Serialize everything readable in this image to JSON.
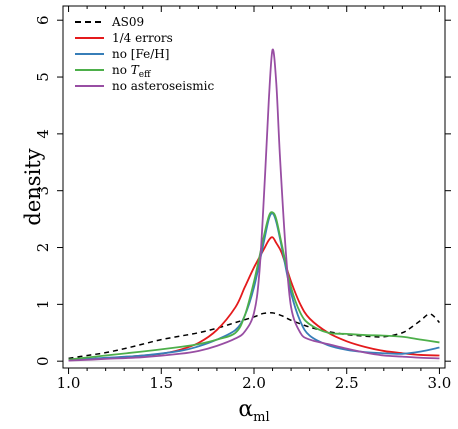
{
  "chart_data": {
    "type": "line",
    "xlabel": "α",
    "xlabel_sub": "ml",
    "ylabel": "density",
    "xlim": [
      0.97,
      3.03
    ],
    "ylim": [
      -0.12,
      6.25
    ],
    "x_ticks": [
      1.0,
      1.5,
      2.0,
      2.5,
      3.0
    ],
    "x_tick_labels": [
      "1.0",
      "1.5",
      "2.0",
      "2.5",
      "3.0"
    ],
    "y_ticks": [
      0,
      1,
      2,
      3,
      4,
      5,
      6
    ],
    "y_tick_labels": [
      "0",
      "1",
      "2",
      "3",
      "4",
      "5",
      "6"
    ],
    "grid": false,
    "legend_position": "top-left",
    "legend": [
      {
        "name": "AS09",
        "color": "#000000",
        "dash": true
      },
      {
        "name": "1/4 errors",
        "color": "#e41a1c",
        "dash": false
      },
      {
        "name": "no [Fe/H]",
        "color": "#377eb8",
        "dash": false
      },
      {
        "name": "no ",
        "name_italic": "T",
        "name_sub": "eff",
        "color": "#4daf4a",
        "dash": false
      },
      {
        "name": "no asteroseismic",
        "color": "#984ea3",
        "dash": false
      }
    ],
    "series": [
      {
        "name": "AS09",
        "color": "#000000",
        "dash": true,
        "width": 1.5,
        "x": [
          1.0,
          1.1,
          1.2,
          1.3,
          1.4,
          1.5,
          1.6,
          1.7,
          1.8,
          1.9,
          2.0,
          2.05,
          2.1,
          2.15,
          2.2,
          2.3,
          2.4,
          2.5,
          2.6,
          2.7,
          2.8,
          2.85,
          2.9,
          2.95,
          3.0
        ],
        "y": [
          0.05,
          0.1,
          0.15,
          0.22,
          0.3,
          0.38,
          0.44,
          0.5,
          0.58,
          0.68,
          0.78,
          0.84,
          0.85,
          0.8,
          0.72,
          0.6,
          0.52,
          0.47,
          0.44,
          0.43,
          0.5,
          0.6,
          0.72,
          0.83,
          0.68
        ]
      },
      {
        "name": "1/4 errors",
        "color": "#e41a1c",
        "dash": false,
        "width": 1.8,
        "x": [
          1.0,
          1.2,
          1.4,
          1.5,
          1.6,
          1.7,
          1.8,
          1.9,
          1.95,
          2.0,
          2.05,
          2.08,
          2.1,
          2.12,
          2.15,
          2.2,
          2.25,
          2.3,
          2.4,
          2.5,
          2.6,
          2.7,
          2.8,
          2.9,
          3.0
        ],
        "y": [
          0.02,
          0.05,
          0.1,
          0.13,
          0.2,
          0.32,
          0.55,
          0.95,
          1.3,
          1.65,
          1.95,
          2.13,
          2.18,
          2.08,
          1.9,
          1.4,
          1.0,
          0.75,
          0.5,
          0.35,
          0.25,
          0.18,
          0.14,
          0.11,
          0.1
        ]
      },
      {
        "name": "no [Fe/H]",
        "color": "#377eb8",
        "dash": false,
        "width": 1.8,
        "x": [
          1.0,
          1.2,
          1.4,
          1.6,
          1.7,
          1.8,
          1.9,
          1.95,
          2.0,
          2.05,
          2.08,
          2.1,
          2.12,
          2.15,
          2.2,
          2.25,
          2.3,
          2.4,
          2.5,
          2.6,
          2.7,
          2.8,
          2.9,
          3.0
        ],
        "y": [
          0.02,
          0.06,
          0.1,
          0.18,
          0.26,
          0.38,
          0.55,
          0.8,
          1.3,
          2.05,
          2.5,
          2.6,
          2.45,
          2.0,
          1.2,
          0.7,
          0.45,
          0.28,
          0.2,
          0.16,
          0.14,
          0.13,
          0.17,
          0.24
        ]
      },
      {
        "name": "no Teff",
        "color": "#4daf4a",
        "dash": false,
        "width": 1.8,
        "x": [
          1.0,
          1.2,
          1.4,
          1.6,
          1.7,
          1.8,
          1.9,
          1.95,
          2.0,
          2.05,
          2.08,
          2.1,
          2.12,
          2.15,
          2.2,
          2.25,
          2.3,
          2.4,
          2.5,
          2.6,
          2.7,
          2.8,
          2.9,
          3.0
        ],
        "y": [
          0.03,
          0.1,
          0.17,
          0.25,
          0.3,
          0.38,
          0.5,
          0.8,
          1.4,
          2.15,
          2.55,
          2.62,
          2.5,
          2.05,
          1.3,
          0.85,
          0.65,
          0.5,
          0.48,
          0.46,
          0.45,
          0.43,
          0.38,
          0.33
        ]
      },
      {
        "name": "no asteroseismic",
        "color": "#984ea3",
        "dash": false,
        "width": 1.8,
        "x": [
          1.0,
          1.2,
          1.4,
          1.6,
          1.7,
          1.8,
          1.9,
          1.95,
          2.0,
          2.03,
          2.06,
          2.08,
          2.1,
          2.12,
          2.14,
          2.17,
          2.2,
          2.25,
          2.3,
          2.4,
          2.5,
          2.6,
          2.7,
          2.8,
          2.9,
          3.0
        ],
        "y": [
          0.01,
          0.04,
          0.07,
          0.13,
          0.18,
          0.27,
          0.4,
          0.52,
          0.85,
          1.6,
          3.3,
          4.6,
          5.48,
          4.9,
          3.6,
          2.0,
          0.95,
          0.5,
          0.38,
          0.3,
          0.22,
          0.15,
          0.1,
          0.08,
          0.06,
          0.05
        ]
      }
    ]
  }
}
